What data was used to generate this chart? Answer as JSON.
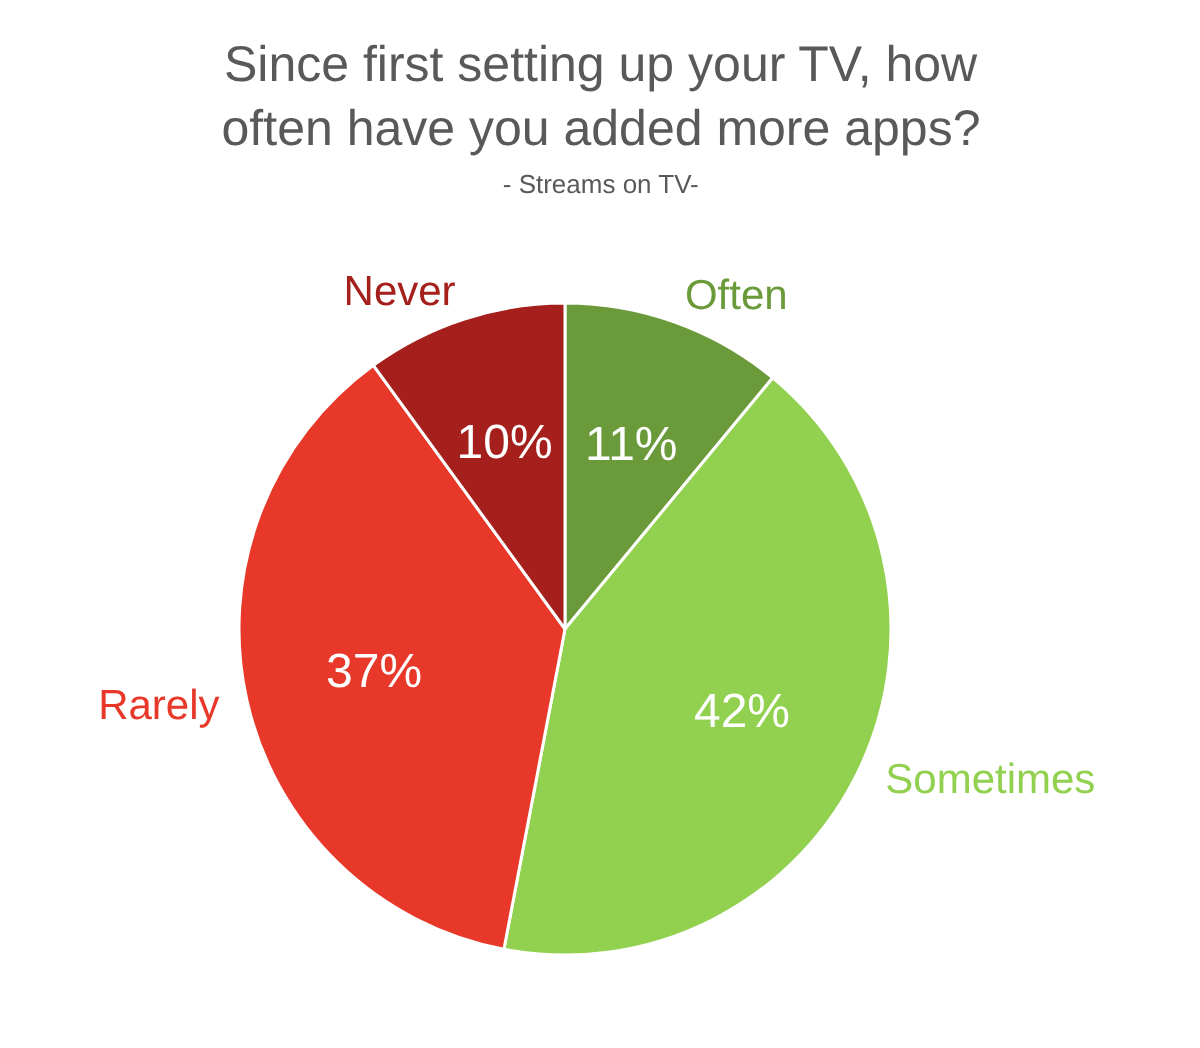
{
  "chart_data": {
    "type": "pie",
    "title": "Since first setting up your TV, how often have you added more apps?",
    "subtitle": "- Streams on TV-",
    "categories": [
      "Often",
      "Sometimes",
      "Rarely",
      "Never"
    ],
    "values": [
      11,
      42,
      37,
      10
    ],
    "colors": [
      "#6a9a3a",
      "#92d050",
      "#e8382a",
      "#a5201c"
    ],
    "value_labels": [
      "11%",
      "42%",
      "37%",
      "10%"
    ]
  }
}
